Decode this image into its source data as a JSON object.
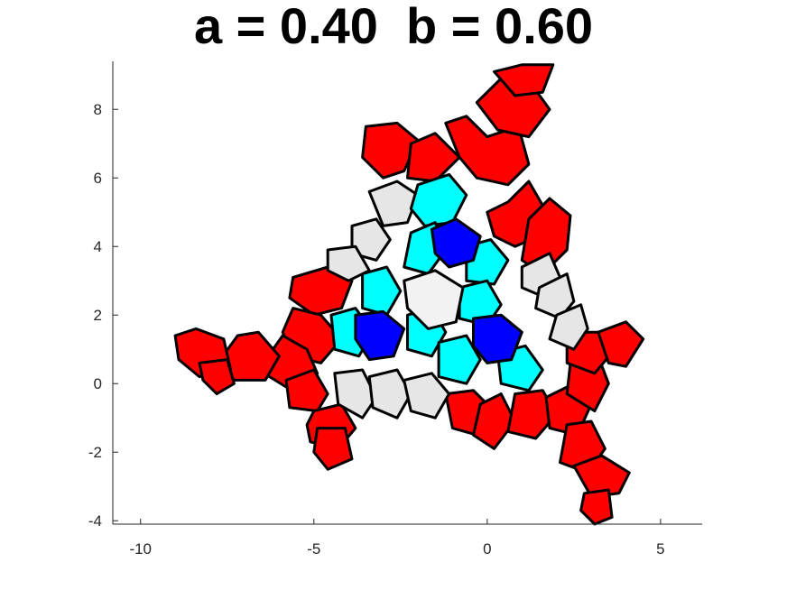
{
  "chart_data": {
    "type": "polygon-tiling",
    "title": "a = 0.40  b = 0.60",
    "xlim": [
      -10.8,
      6.2
    ],
    "ylim": [
      -4.1,
      9.4
    ],
    "xticks": [
      -10,
      -5,
      0,
      5
    ],
    "yticks": [
      -4,
      -2,
      0,
      2,
      4,
      6,
      8
    ],
    "xtick_labels": [
      "-10",
      "-5",
      "0",
      "5"
    ],
    "ytick_labels": [
      "-4",
      "-2",
      "0",
      "2",
      "4",
      "6",
      "8"
    ],
    "grid": false,
    "legend": "none",
    "colors": {
      "red": "#ff0000",
      "cyan": "#00ffff",
      "blue": "#0000ff",
      "light_gray": "#e6e6e6",
      "center": "#f2f2f2",
      "edge": "#000000"
    },
    "tile_groups": [
      {
        "color": "#ff0000",
        "tiles": [
          [
            [
              -1.2,
              7.6
            ],
            [
              -0.6,
              7.8
            ],
            [
              0.0,
              7.2
            ],
            [
              0.9,
              7.5
            ],
            [
              1.2,
              6.4
            ],
            [
              0.6,
              5.8
            ],
            [
              -0.3,
              6.0
            ],
            [
              -0.8,
              6.6
            ]
          ],
          [
            [
              -0.3,
              8.2
            ],
            [
              0.4,
              8.9
            ],
            [
              1.3,
              8.7
            ],
            [
              1.8,
              8.0
            ],
            [
              1.2,
              7.2
            ],
            [
              0.3,
              7.4
            ]
          ],
          [
            [
              0.2,
              9.1
            ],
            [
              1.0,
              9.3
            ],
            [
              1.9,
              9.3
            ],
            [
              1.6,
              8.5
            ],
            [
              0.8,
              8.4
            ]
          ],
          [
            [
              -3.5,
              7.5
            ],
            [
              -2.6,
              7.6
            ],
            [
              -2.0,
              7.1
            ],
            [
              -2.4,
              6.2
            ],
            [
              -3.0,
              6.0
            ],
            [
              -3.6,
              6.6
            ]
          ],
          [
            [
              -2.2,
              7.0
            ],
            [
              -1.5,
              7.3
            ],
            [
              -0.8,
              6.6
            ],
            [
              -1.5,
              5.9
            ],
            [
              -2.3,
              6.0
            ]
          ],
          [
            [
              0.0,
              5.0
            ],
            [
              0.6,
              5.3
            ],
            [
              1.2,
              5.9
            ],
            [
              1.6,
              5.2
            ],
            [
              1.5,
              4.3
            ],
            [
              0.8,
              4.0
            ],
            [
              0.2,
              4.3
            ]
          ],
          [
            [
              1.2,
              4.8
            ],
            [
              1.8,
              5.4
            ],
            [
              2.4,
              4.9
            ],
            [
              2.3,
              3.9
            ],
            [
              1.6,
              3.2
            ],
            [
              1.0,
              3.6
            ]
          ],
          [
            [
              -5.6,
              3.1
            ],
            [
              -4.6,
              3.4
            ],
            [
              -3.9,
              3.0
            ],
            [
              -4.2,
              2.2
            ],
            [
              -5.0,
              2.0
            ],
            [
              -5.7,
              2.5
            ]
          ],
          [
            [
              -5.6,
              2.2
            ],
            [
              -4.8,
              2.0
            ],
            [
              -4.2,
              1.3
            ],
            [
              -4.8,
              0.6
            ],
            [
              -5.6,
              0.8
            ],
            [
              -5.9,
              1.5
            ]
          ],
          [
            [
              -5.9,
              1.4
            ],
            [
              -5.2,
              1.0
            ],
            [
              -4.9,
              0.3
            ],
            [
              -5.8,
              -0.1
            ],
            [
              -6.6,
              0.4
            ]
          ],
          [
            [
              -7.2,
              1.4
            ],
            [
              -6.6,
              1.5
            ],
            [
              -6.0,
              0.8
            ],
            [
              -6.4,
              0.1
            ],
            [
              -7.3,
              0.1
            ],
            [
              -7.7,
              0.7
            ]
          ],
          [
            [
              -9.0,
              1.4
            ],
            [
              -8.4,
              1.6
            ],
            [
              -7.6,
              1.3
            ],
            [
              -7.4,
              0.4
            ],
            [
              -8.3,
              0.2
            ],
            [
              -8.9,
              0.7
            ]
          ],
          [
            [
              -8.3,
              0.6
            ],
            [
              -7.5,
              0.7
            ],
            [
              -7.3,
              0.0
            ],
            [
              -7.8,
              -0.3
            ],
            [
              -8.2,
              0.1
            ]
          ],
          [
            [
              -5.8,
              0.1
            ],
            [
              -5.0,
              0.4
            ],
            [
              -4.6,
              -0.3
            ],
            [
              -4.9,
              -0.8
            ],
            [
              -5.7,
              -0.7
            ]
          ],
          [
            [
              -5.0,
              -0.8
            ],
            [
              -4.2,
              -0.6
            ],
            [
              -3.8,
              -1.3
            ],
            [
              -4.3,
              -1.9
            ],
            [
              -5.1,
              -1.7
            ],
            [
              -5.2,
              -1.2
            ]
          ],
          [
            [
              -4.9,
              -1.3
            ],
            [
              -4.1,
              -1.3
            ],
            [
              -3.9,
              -2.2
            ],
            [
              -4.6,
              -2.5
            ],
            [
              -5.0,
              -2.0
            ]
          ],
          [
            [
              -1.2,
              -0.3
            ],
            [
              -0.4,
              -0.2
            ],
            [
              0.1,
              -0.7
            ],
            [
              -0.3,
              -1.5
            ],
            [
              -1.0,
              -1.3
            ]
          ],
          [
            [
              -0.2,
              -0.6
            ],
            [
              0.4,
              -0.3
            ],
            [
              0.8,
              -1.1
            ],
            [
              0.2,
              -1.9
            ],
            [
              -0.4,
              -1.5
            ]
          ],
          [
            [
              0.8,
              -0.3
            ],
            [
              1.6,
              -0.2
            ],
            [
              2.0,
              -0.9
            ],
            [
              1.4,
              -1.6
            ],
            [
              0.6,
              -1.4
            ]
          ],
          [
            [
              1.7,
              -0.4
            ],
            [
              2.5,
              0.0
            ],
            [
              3.0,
              -0.6
            ],
            [
              2.6,
              -1.5
            ],
            [
              1.8,
              -1.3
            ]
          ],
          [
            [
              2.4,
              0.6
            ],
            [
              3.2,
              0.8
            ],
            [
              3.5,
              0.0
            ],
            [
              3.1,
              -0.8
            ],
            [
              2.3,
              -0.3
            ]
          ],
          [
            [
              2.3,
              -1.2
            ],
            [
              3.0,
              -1.1
            ],
            [
              3.4,
              -1.9
            ],
            [
              2.9,
              -2.6
            ],
            [
              2.1,
              -2.3
            ]
          ],
          [
            [
              2.5,
              -2.4
            ],
            [
              3.3,
              -2.1
            ],
            [
              4.1,
              -2.6
            ],
            [
              3.8,
              -3.2
            ],
            [
              3.0,
              -3.3
            ]
          ],
          [
            [
              2.8,
              -3.2
            ],
            [
              3.5,
              -3.1
            ],
            [
              3.6,
              -3.9
            ],
            [
              3.1,
              -4.1
            ],
            [
              2.7,
              -3.7
            ]
          ],
          [
            [
              2.3,
              1.5
            ],
            [
              3.3,
              1.5
            ],
            [
              3.6,
              0.9
            ],
            [
              3.1,
              0.3
            ],
            [
              2.3,
              0.6
            ]
          ],
          [
            [
              3.2,
              1.5
            ],
            [
              4.0,
              1.8
            ],
            [
              4.5,
              1.3
            ],
            [
              4.0,
              0.5
            ],
            [
              3.5,
              0.6
            ]
          ]
        ]
      },
      {
        "color": "#e6e6e6",
        "tiles": [
          [
            [
              -3.4,
              5.6
            ],
            [
              -2.6,
              5.9
            ],
            [
              -2.0,
              5.5
            ],
            [
              -2.3,
              4.7
            ],
            [
              -3.0,
              4.6
            ]
          ],
          [
            [
              -3.9,
              4.6
            ],
            [
              -3.2,
              4.8
            ],
            [
              -2.8,
              4.2
            ],
            [
              -3.2,
              3.6
            ],
            [
              -3.9,
              3.8
            ]
          ],
          [
            [
              -4.6,
              3.9
            ],
            [
              -3.8,
              4.0
            ],
            [
              -3.4,
              3.3
            ],
            [
              -4.0,
              3.0
            ],
            [
              -4.6,
              3.3
            ]
          ],
          [
            [
              1.0,
              3.4
            ],
            [
              1.8,
              3.8
            ],
            [
              2.1,
              3.1
            ],
            [
              1.7,
              2.5
            ],
            [
              1.0,
              2.8
            ]
          ],
          [
            [
              1.5,
              2.8
            ],
            [
              2.3,
              3.2
            ],
            [
              2.5,
              2.4
            ],
            [
              2.1,
              1.9
            ],
            [
              1.4,
              2.2
            ]
          ],
          [
            [
              2.0,
              2.0
            ],
            [
              2.7,
              2.3
            ],
            [
              2.9,
              1.6
            ],
            [
              2.5,
              1.0
            ],
            [
              1.8,
              1.3
            ]
          ],
          [
            [
              -4.4,
              0.3
            ],
            [
              -3.6,
              0.4
            ],
            [
              -3.2,
              -0.4
            ],
            [
              -3.6,
              -1.0
            ],
            [
              -4.3,
              -0.6
            ]
          ],
          [
            [
              -3.4,
              0.2
            ],
            [
              -2.6,
              0.4
            ],
            [
              -2.2,
              -0.3
            ],
            [
              -2.6,
              -1.0
            ],
            [
              -3.3,
              -0.7
            ]
          ],
          [
            [
              -2.4,
              0.1
            ],
            [
              -1.6,
              0.3
            ],
            [
              -1.1,
              -0.3
            ],
            [
              -1.5,
              -1.0
            ],
            [
              -2.2,
              -0.8
            ]
          ]
        ]
      },
      {
        "color": "#00ffff",
        "tiles": [
          [
            [
              -2.0,
              5.8
            ],
            [
              -1.1,
              6.1
            ],
            [
              -0.6,
              5.5
            ],
            [
              -1.0,
              4.7
            ],
            [
              -1.8,
              4.6
            ],
            [
              -2.2,
              5.1
            ]
          ],
          [
            [
              -2.2,
              4.4
            ],
            [
              -1.5,
              4.7
            ],
            [
              -1.2,
              3.9
            ],
            [
              -1.7,
              3.2
            ],
            [
              -2.4,
              3.4
            ]
          ],
          [
            [
              -0.6,
              4.0
            ],
            [
              0.1,
              4.2
            ],
            [
              0.6,
              3.6
            ],
            [
              0.2,
              2.9
            ],
            [
              -0.6,
              3.0
            ]
          ],
          [
            [
              -3.6,
              3.2
            ],
            [
              -2.9,
              3.4
            ],
            [
              -2.5,
              2.7
            ],
            [
              -2.9,
              2.0
            ],
            [
              -3.6,
              2.2
            ]
          ],
          [
            [
              -4.5,
              2.0
            ],
            [
              -3.8,
              2.2
            ],
            [
              -3.3,
              1.5
            ],
            [
              -3.7,
              0.8
            ],
            [
              -4.4,
              1.0
            ]
          ],
          [
            [
              -0.8,
              2.8
            ],
            [
              0.0,
              3.0
            ],
            [
              0.4,
              2.3
            ],
            [
              0.0,
              1.7
            ],
            [
              -0.8,
              1.9
            ]
          ],
          [
            [
              -2.3,
              2.0
            ],
            [
              -1.6,
              2.2
            ],
            [
              -1.2,
              1.5
            ],
            [
              -1.6,
              0.8
            ],
            [
              -2.3,
              1.0
            ]
          ],
          [
            [
              -1.4,
              1.2
            ],
            [
              -0.6,
              1.4
            ],
            [
              -0.2,
              0.7
            ],
            [
              -0.6,
              0.0
            ],
            [
              -1.4,
              0.2
            ]
          ],
          [
            [
              0.3,
              0.9
            ],
            [
              1.1,
              1.1
            ],
            [
              1.6,
              0.4
            ],
            [
              1.2,
              -0.2
            ],
            [
              0.4,
              0.0
            ]
          ]
        ]
      },
      {
        "color": "#0000ff",
        "tiles": [
          [
            [
              -1.6,
              4.5
            ],
            [
              -0.9,
              4.8
            ],
            [
              -0.2,
              4.3
            ],
            [
              -0.4,
              3.6
            ],
            [
              -1.1,
              3.4
            ],
            [
              -1.5,
              3.8
            ]
          ],
          [
            [
              -3.8,
              2.0
            ],
            [
              -3.0,
              2.1
            ],
            [
              -2.4,
              1.6
            ],
            [
              -2.7,
              0.8
            ],
            [
              -3.4,
              0.7
            ],
            [
              -3.8,
              1.3
            ]
          ],
          [
            [
              -0.4,
              1.9
            ],
            [
              0.4,
              2.0
            ],
            [
              1.0,
              1.5
            ],
            [
              0.7,
              0.7
            ],
            [
              0.0,
              0.6
            ],
            [
              -0.4,
              1.1
            ]
          ]
        ]
      },
      {
        "color": "#f2f2f2",
        "tiles": [
          [
            [
              -2.4,
              3.0
            ],
            [
              -1.5,
              3.3
            ],
            [
              -0.7,
              2.8
            ],
            [
              -0.9,
              1.8
            ],
            [
              -1.7,
              1.6
            ],
            [
              -2.3,
              2.2
            ]
          ]
        ]
      }
    ]
  }
}
